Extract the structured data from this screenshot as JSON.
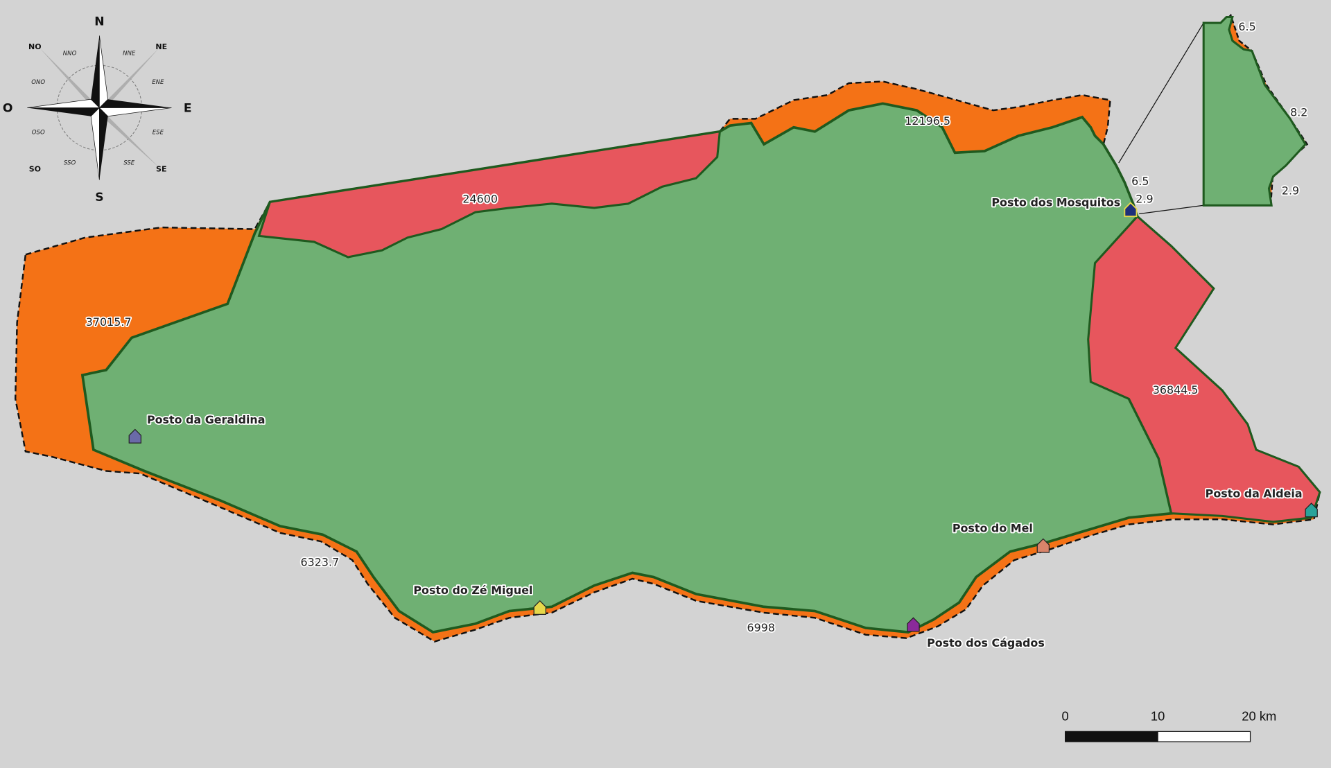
{
  "colors": {
    "background": "#d3d3d3",
    "land": "#6fb073",
    "border": "#1f5a1f",
    "orange_zone": "#f47216",
    "red_zone": "#e7565d"
  },
  "compass": {
    "cardinal": {
      "n": "N",
      "s": "S",
      "e": "E",
      "w": "O"
    },
    "intercardinal": {
      "ne": "NE",
      "no": "NO",
      "se": "SE",
      "so": "SO"
    },
    "secondary": {
      "nne": "NNE",
      "nno": "NNO",
      "ene": "ENE",
      "ono": "ONO",
      "ese": "ESE",
      "oso": "OSO",
      "sse": "SSE",
      "sso": "SSO"
    }
  },
  "zones": {
    "west": "37015.7",
    "northwest": "24600",
    "north": "12196.5",
    "northeast_a": "6.5",
    "northeast_b": "2.9",
    "east": "36844.5",
    "southwest": "6323.7",
    "south": "6998"
  },
  "inset": {
    "top": "6.5",
    "middle": "8.2",
    "bottom": "2.9"
  },
  "posts": [
    {
      "name": "Posto da Geraldina",
      "color": "#6a6aa8"
    },
    {
      "name": "Posto dos Mosquitos",
      "color": "#1e2f7a"
    },
    {
      "name": "Posto da Aldeia",
      "color": "#2aa39a"
    },
    {
      "name": "Posto do Mel",
      "color": "#d9846a"
    },
    {
      "name": "Posto dos Cágados",
      "color": "#8a2a9a"
    },
    {
      "name": "Posto do Zé Miguel",
      "color": "#e6d84a"
    }
  ],
  "scale_bar": {
    "ticks": [
      "0",
      "10",
      "20 km"
    ]
  }
}
